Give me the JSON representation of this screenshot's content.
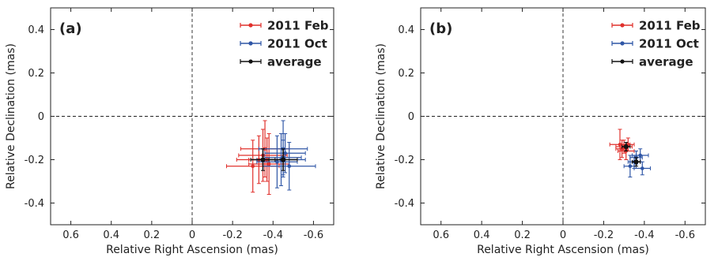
{
  "chart_data": [
    {
      "type": "scatter",
      "panel_label": "(a)",
      "xlabel": "Relative Right Ascension (mas)",
      "ylabel": "Relative Declination (mas)",
      "xlim": [
        0.7,
        -0.7
      ],
      "ylim": [
        -0.5,
        0.5
      ],
      "x_ticks": [
        "0.6",
        "0.4",
        "0.2",
        "0",
        "-0.2",
        "-0.4",
        "-0.6"
      ],
      "y_ticks": [
        "0.4",
        "0.2",
        "0",
        "-0.2",
        "-0.4"
      ],
      "zero_lines": "dashed",
      "grid": false,
      "legend_position": "top-right",
      "series": [
        {
          "name": "2011 Feb",
          "color": "#e0302c",
          "points": [
            {
              "x": -0.3,
              "y": -0.23,
              "xerr": 0.13,
              "yerr": 0.12
            },
            {
              "x": -0.33,
              "y": -0.2,
              "xerr": 0.11,
              "yerr": 0.11
            },
            {
              "x": -0.36,
              "y": -0.15,
              "xerr": 0.12,
              "yerr": 0.13
            },
            {
              "x": -0.38,
              "y": -0.22,
              "xerr": 0.1,
              "yerr": 0.14
            },
            {
              "x": -0.35,
              "y": -0.18,
              "xerr": 0.12,
              "yerr": 0.12
            },
            {
              "x": -0.37,
              "y": -0.2,
              "xerr": 0.09,
              "yerr": 0.1
            }
          ]
        },
        {
          "name": "2011 Oct",
          "color": "#2f56a6",
          "points": [
            {
              "x": -0.45,
              "y": -0.15,
              "xerr": 0.12,
              "yerr": 0.13
            },
            {
              "x": -0.44,
              "y": -0.2,
              "xerr": 0.12,
              "yerr": 0.12
            },
            {
              "x": -0.46,
              "y": -0.17,
              "xerr": 0.1,
              "yerr": 0.09
            },
            {
              "x": -0.48,
              "y": -0.23,
              "xerr": 0.13,
              "yerr": 0.11
            },
            {
              "x": -0.42,
              "y": -0.21,
              "xerr": 0.1,
              "yerr": 0.12
            },
            {
              "x": -0.45,
              "y": -0.19,
              "xerr": 0.09,
              "yerr": 0.08
            }
          ]
        },
        {
          "name": "average",
          "color": "#111111",
          "points": [
            {
              "x": -0.35,
              "y": -0.2,
              "xerr": 0.06,
              "yerr": 0.05
            },
            {
              "x": -0.45,
              "y": -0.2,
              "xerr": 0.07,
              "yerr": 0.05
            }
          ]
        }
      ]
    },
    {
      "type": "scatter",
      "panel_label": "(b)",
      "xlabel": "Relative Right Ascension (mas)",
      "ylabel": "Relative Declination (mas)",
      "xlim": [
        0.7,
        -0.7
      ],
      "ylim": [
        -0.5,
        0.5
      ],
      "x_ticks": [
        "0.6",
        "0.4",
        "0.2",
        "0",
        "-0.2",
        "-0.4",
        "-0.6"
      ],
      "y_ticks": [
        "0.4",
        "0.2",
        "0",
        "-0.2",
        "-0.4"
      ],
      "zero_lines": "dashed",
      "grid": false,
      "legend_position": "top-right",
      "series": [
        {
          "name": "2011 Feb",
          "color": "#e0302c",
          "points": [
            {
              "x": -0.28,
              "y": -0.13,
              "xerr": 0.05,
              "yerr": 0.07
            },
            {
              "x": -0.3,
              "y": -0.14,
              "xerr": 0.04,
              "yerr": 0.03
            },
            {
              "x": -0.31,
              "y": -0.16,
              "xerr": 0.04,
              "yerr": 0.04
            },
            {
              "x": -0.32,
              "y": -0.13,
              "xerr": 0.03,
              "yerr": 0.03
            },
            {
              "x": -0.29,
              "y": -0.15,
              "xerr": 0.03,
              "yerr": 0.04
            }
          ]
        },
        {
          "name": "2011 Oct",
          "color": "#2f56a6",
          "points": [
            {
              "x": -0.33,
              "y": -0.23,
              "xerr": 0.03,
              "yerr": 0.05
            },
            {
              "x": -0.38,
              "y": -0.18,
              "xerr": 0.04,
              "yerr": 0.03
            },
            {
              "x": -0.39,
              "y": -0.24,
              "xerr": 0.04,
              "yerr": 0.03
            },
            {
              "x": -0.35,
              "y": -0.21,
              "xerr": 0.03,
              "yerr": 0.03
            },
            {
              "x": -0.36,
              "y": -0.19,
              "xerr": 0.03,
              "yerr": 0.03
            }
          ]
        },
        {
          "name": "average",
          "color": "#111111",
          "points": [
            {
              "x": -0.31,
              "y": -0.14,
              "xerr": 0.02,
              "yerr": 0.02
            },
            {
              "x": -0.36,
              "y": -0.21,
              "xerr": 0.02,
              "yerr": 0.02
            }
          ]
        }
      ]
    }
  ]
}
